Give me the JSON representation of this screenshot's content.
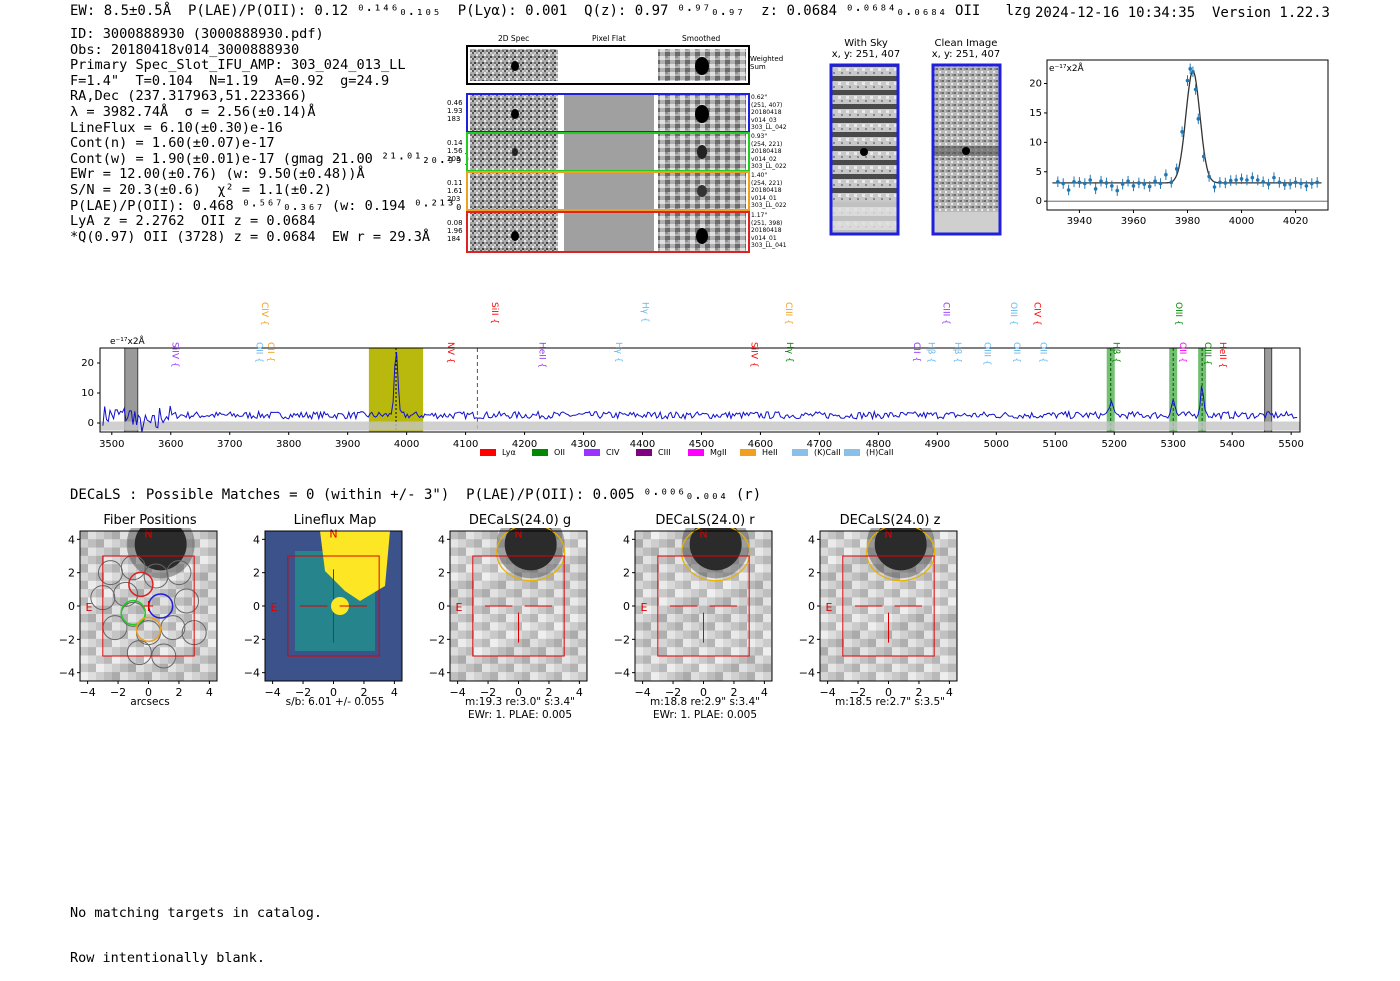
{
  "header": {
    "left_text": "EW: 8.5±0.5Å  P(LAE)/P(OII): 0.12 ⁰·¹⁴⁶₀.₁₀₅  P(Lyα): 0.001  Q(z): 0.97 ⁰·⁹⁷₀.₉₇  z: 0.0684 ⁰·⁰⁶⁸⁴₀.₀₆₈₄ OII   lzg",
    "right_text": "2024-12-16 10:34:35  Version 1.22.3"
  },
  "info_lines": [
    "ID: 3000888930 (3000888930.pdf)",
    "Obs: 20180418v014_3000888930",
    "Primary Spec_Slot_IFU_AMP: 303_024_013_LL",
    "F=1.4\"  T=0.104  N=1.19  A=0.92  g=24.9",
    "RA,Dec (237.317963,51.223366)",
    "λ = 3982.74Å  σ = 2.56(±0.14)Å",
    "LineFlux = 6.10(±0.30)e-16",
    "Cont(n) = 1.60(±0.07)e-17",
    "Cont(w) = 1.90(±0.01)e-17 (gmag 21.00 ²¹·⁰¹₂₀.₉₉)",
    "EWr = 12.00(±0.76) (w: 9.50(±0.48))Å",
    "S/N = 20.3(±0.6)  χ² = 1.1(±0.2)",
    "P(LAE)/P(OII): 0.468 ⁰·⁵⁶⁷₀.₃₆₇ (w: 0.194 ⁰·²¹³₀.₁₇₉)",
    "LyA z = 2.2762  OII z = 0.0684",
    "*Q(0.97) OII (3728) z = 0.0684  EW r = 29.3Å"
  ],
  "cutouts": {
    "col_titles": [
      "2D Spec",
      "Pixel Flat",
      "Smoothed"
    ],
    "weighted_label": "Weighted\nSum",
    "rows": [
      {
        "left": [
          "0.46",
          "1.93",
          "183"
        ],
        "right": [
          "0.62\"",
          "(251, 407)",
          "20180418",
          "v014_03",
          "303_LL_042"
        ],
        "color": "#1f1fdd"
      },
      {
        "left": [
          "0.14",
          "1.56",
          "203"
        ],
        "right": [
          "0.93\"",
          "(254, 221)",
          "20180418",
          "v014_02",
          "303_LL_022"
        ],
        "color": "#22cc22"
      },
      {
        "left": [
          "0.11",
          "1.61",
          "203"
        ],
        "right": [
          "1.40\"",
          "(254, 221)",
          "20180418",
          "v014_01",
          "303_LL_022"
        ],
        "color": "#f0a020"
      },
      {
        "left": [
          "0.08",
          "1.96",
          "184"
        ],
        "right": [
          "1.17\"",
          "(251, 398)",
          "20180418",
          "v014_01",
          "303_LL_041"
        ],
        "color": "#dd2222"
      }
    ]
  },
  "sky_panels": {
    "with_sky_title": "With Sky",
    "with_sky_coords": "x, y: 251, 407",
    "clean_title": "Clean Image",
    "clean_coords": "x, y: 251, 407"
  },
  "chart_data": [
    {
      "type": "line",
      "title": "",
      "ylabel": "e⁻¹⁷x2Å",
      "xlim": [
        3928,
        4032
      ],
      "ylim": [
        -1.5,
        24
      ],
      "xticks": [
        3940,
        3960,
        3980,
        4000,
        4020
      ],
      "yticks": [
        0,
        5,
        10,
        15,
        20
      ],
      "series": [
        {
          "name": "data",
          "x": [
            3932,
            3934,
            3936,
            3938,
            3940,
            3942,
            3944,
            3946,
            3948,
            3950,
            3952,
            3954,
            3956,
            3958,
            3960,
            3962,
            3964,
            3966,
            3968,
            3970,
            3972,
            3974,
            3976,
            3978,
            3980,
            3981,
            3982,
            3983,
            3984,
            3986,
            3988,
            3990,
            3992,
            3994,
            3996,
            3998,
            4000,
            4002,
            4004,
            4006,
            4008,
            4010,
            4012,
            4014,
            4016,
            4018,
            4020,
            4022,
            4024,
            4026,
            4028
          ],
          "y": [
            3.3,
            3.0,
            1.9,
            3.3,
            3.2,
            3.0,
            3.6,
            2.1,
            3.4,
            3.1,
            2.6,
            1.8,
            2.9,
            3.4,
            2.6,
            3.1,
            2.9,
            2.5,
            3.4,
            3.0,
            4.5,
            3.2,
            5.5,
            11.8,
            20.5,
            22.5,
            22.0,
            19.0,
            14.0,
            7.6,
            4.2,
            2.4,
            3.2,
            3.1,
            3.5,
            3.6,
            3.8,
            3.6,
            4.0,
            3.6,
            3.3,
            2.9,
            4.0,
            3.2,
            2.8,
            2.9,
            3.2,
            3.0,
            2.6,
            3.0,
            3.2
          ]
        },
        {
          "name": "fit",
          "continuum": 3.1,
          "center": 3982.0,
          "sigma": 2.6,
          "amplitude": 19.0
        }
      ]
    },
    {
      "type": "line",
      "ylabel": "e⁻¹⁷x2Å",
      "xlim": [
        3480,
        5515
      ],
      "ylim": [
        -3,
        25
      ],
      "xticks": [
        3500,
        3600,
        3700,
        3800,
        3900,
        4000,
        4100,
        4200,
        4300,
        4400,
        4500,
        4600,
        4700,
        4800,
        4900,
        5000,
        5100,
        5200,
        5300,
        5400,
        5500
      ],
      "yticks": [
        0,
        10,
        20
      ],
      "peaks": [
        {
          "center": 3982,
          "height": 21,
          "sigma": 3
        },
        {
          "center": 5194,
          "height": 4.5,
          "sigma": 3
        },
        {
          "center": 5300,
          "height": 5,
          "sigma": 3
        },
        {
          "center": 5349,
          "height": 9.5,
          "sigma": 3
        }
      ],
      "highlight_band": [
        3936,
        4028
      ],
      "line_marks": [
        5194,
        5300,
        5349
      ],
      "gray_bands": [
        [
          3522,
          3544
        ],
        [
          5455,
          5467
        ]
      ],
      "dashed_line": 4120,
      "lines": [
        {
          "name": "SiIV",
          "wave": 3598,
          "color": "#9933ff"
        },
        {
          "name": "OII",
          "wave": 3740,
          "color": "#66bbee"
        },
        {
          "name": "CIV",
          "wave": 3750,
          "color": "#f0a020"
        },
        {
          "name": "CII",
          "wave": 3760,
          "color": "#f0a020"
        },
        {
          "name": "NV",
          "wave": 4065,
          "color": "#ff0000"
        },
        {
          "name": "SiII",
          "wave": 4140,
          "color": "#ff0000"
        },
        {
          "name": "HeII",
          "wave": 4220,
          "color": "#9933ff"
        },
        {
          "name": "Hγ",
          "wave": 4350,
          "color": "#66bbee"
        },
        {
          "name": "Hγ",
          "wave": 4395,
          "color": "#66bbee"
        },
        {
          "name": "SiIV",
          "wave": 4580,
          "color": "#ff0000"
        },
        {
          "name": "Hγ",
          "wave": 4640,
          "color": "#008800"
        },
        {
          "name": "CIII",
          "wave": 4638,
          "color": "#f0a020"
        },
        {
          "name": "CII",
          "wave": 4855,
          "color": "#9933ff"
        },
        {
          "name": "Hβ",
          "wave": 4880,
          "color": "#66bbee"
        },
        {
          "name": "CIII",
          "wave": 4905,
          "color": "#9933ff"
        },
        {
          "name": "Hβ",
          "wave": 4925,
          "color": "#66bbee"
        },
        {
          "name": "OIII",
          "wave": 4975,
          "color": "#66bbee"
        },
        {
          "name": "OIII",
          "wave": 5020,
          "color": "#66bbee"
        },
        {
          "name": "OII",
          "wave": 5025,
          "color": "#66bbee"
        },
        {
          "name": "OII",
          "wave": 5070,
          "color": "#66bbee"
        },
        {
          "name": "CIV",
          "wave": 5060,
          "color": "#ff0000"
        },
        {
          "name": "Hβ",
          "wave": 5194,
          "color": "#008800"
        },
        {
          "name": "OII",
          "wave": 5306,
          "color": "#ff00ff"
        },
        {
          "name": "OIII",
          "wave": 5300,
          "color": "#008800"
        },
        {
          "name": "OIII",
          "wave": 5349,
          "color": "#008800"
        },
        {
          "name": "HeII",
          "wave": 5374,
          "color": "#ff0000"
        }
      ],
      "legend": [
        {
          "label": "Lyα",
          "color": "#ff0000"
        },
        {
          "label": "OII",
          "color": "#008800"
        },
        {
          "label": "CIV",
          "color": "#9933ff"
        },
        {
          "label": "CIII",
          "color": "#800080"
        },
        {
          "label": "MgII",
          "color": "#ff00ff"
        },
        {
          "label": "HeII",
          "color": "#f0a020"
        },
        {
          "label": "(K)CaII",
          "color": "#88c0e8"
        },
        {
          "label": "(H)CaII",
          "color": "#88c0e8"
        }
      ]
    }
  ],
  "decals": {
    "line": "DECaLS : Possible Matches = 0 (within +/- 3\")  P(LAE)/P(OII): 0.005 ⁰·⁰⁰⁶₀.₀₀₄ (r)",
    "ticks": [
      "4",
      "2",
      "0",
      "−2",
      "−4"
    ],
    "xticks": [
      "−4",
      "−2",
      "0",
      "2",
      "4"
    ],
    "north": "N",
    "east": "E",
    "panels": [
      {
        "title": "Fiber Positions",
        "caption": [
          "arcsecs"
        ]
      },
      {
        "title": "Lineflux Map",
        "caption": [
          "s/b: 6.01 +/- 0.055"
        ]
      },
      {
        "title": "DECaLS(24.0) g",
        "caption": [
          "m:19.3  re:3.0\"  s:3.4\"",
          "EWr: 1. PLAE: 0.005"
        ]
      },
      {
        "title": "DECaLS(24.0) r",
        "caption": [
          "m:18.8  re:2.9\"  s:3.4\"",
          "EWr: 1. PLAE: 0.005"
        ]
      },
      {
        "title": "DECaLS(24.0) z",
        "caption": [
          "m:18.5  re:2.7\"  s:3.5\""
        ]
      }
    ]
  },
  "footer": {
    "line1": "No matching targets in catalog.",
    "line2": "Row intentionally blank."
  }
}
